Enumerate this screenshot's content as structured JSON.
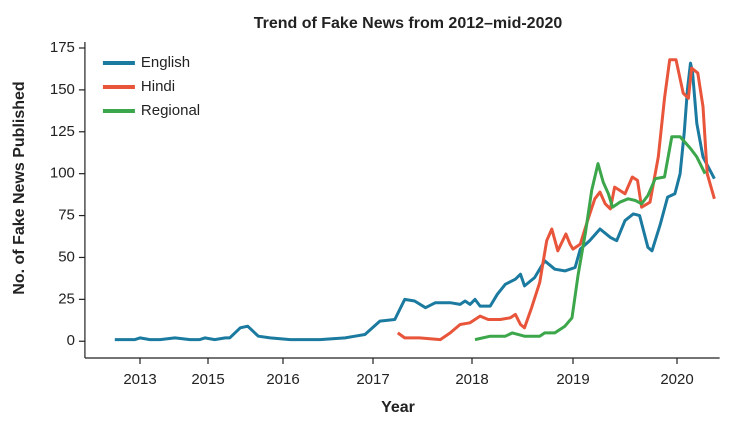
{
  "chart_data": {
    "type": "line",
    "title": "Trend of Fake News from 2012–mid-2020",
    "xlabel": "Year",
    "ylabel": "No. of Fake News Published",
    "xlim": [
      2011.38,
      2020.41
    ],
    "xticks": [
      2013,
      2015,
      2016,
      2017,
      2018,
      2019,
      2020
    ],
    "ylim": [
      -10,
      175
    ],
    "yticks": [
      0,
      25,
      50,
      75,
      100,
      125,
      150,
      175
    ],
    "grid": false,
    "legend": "upper left",
    "series": [
      {
        "name": "English",
        "color": "#1b7a9f",
        "x": [
          2012.26,
          2012.85,
          2013.0,
          2013.29,
          2013.59,
          2014.03,
          2014.47,
          2014.76,
          2014.91,
          2015.09,
          2015.23,
          2015.29,
          2015.43,
          2015.53,
          2015.67,
          2015.83,
          2016.08,
          2016.41,
          2016.69,
          2016.8,
          2016.91,
          2017.07,
          2017.22,
          2017.32,
          2017.42,
          2017.53,
          2017.63,
          2017.78,
          2017.88,
          2017.93,
          2017.98,
          2018.03,
          2018.08,
          2018.18,
          2018.25,
          2018.33,
          2018.43,
          2018.48,
          2018.52,
          2018.62,
          2018.72,
          2018.82,
          2018.92,
          2019.02,
          2019.07,
          2019.16,
          2019.26,
          2019.36,
          2019.42,
          2019.5,
          2019.58,
          2019.64,
          2019.72,
          2019.76,
          2019.84,
          2019.91,
          2019.98,
          2020.03,
          2020.07,
          2020.1,
          2020.13,
          2020.15,
          2020.19,
          2020.25,
          2020.36
        ],
        "values": [
          1,
          1,
          2,
          1,
          1,
          2,
          1,
          1,
          2,
          1,
          2,
          2,
          8,
          9,
          3,
          2,
          1,
          1,
          2,
          3,
          4,
          12,
          13,
          25,
          24,
          20,
          23,
          23,
          22,
          24,
          22,
          25,
          21,
          21,
          28,
          34,
          37,
          40,
          33,
          38,
          48,
          43,
          42,
          44,
          55,
          60,
          67,
          62,
          60,
          72,
          76,
          75,
          56,
          54,
          70,
          86,
          88,
          100,
          125,
          150,
          166,
          160,
          130,
          110,
          97
        ]
      },
      {
        "name": "Hindi",
        "color": "#e8553a",
        "x": [
          2017.25,
          2017.32,
          2017.47,
          2017.68,
          2017.78,
          2017.88,
          2017.98,
          2018.08,
          2018.16,
          2018.28,
          2018.38,
          2018.43,
          2018.48,
          2018.52,
          2018.59,
          2018.67,
          2018.74,
          2018.79,
          2018.85,
          2018.93,
          2018.97,
          2019.0,
          2019.07,
          2019.14,
          2019.21,
          2019.26,
          2019.31,
          2019.36,
          2019.4,
          2019.45,
          2019.5,
          2019.57,
          2019.62,
          2019.66,
          2019.74,
          2019.82,
          2019.88,
          2019.93,
          2019.99,
          2020.06,
          2020.11,
          2020.14,
          2020.2,
          2020.25,
          2020.29,
          2020.36
        ],
        "values": [
          5,
          2,
          2,
          1,
          5,
          10,
          11,
          15,
          13,
          13,
          14,
          16,
          10,
          8,
          20,
          35,
          60,
          67,
          54,
          64,
          58,
          55,
          58,
          72,
          85,
          89,
          82,
          79,
          92,
          90,
          88,
          98,
          96,
          80,
          83,
          110,
          145,
          168,
          168,
          148,
          145,
          163,
          160,
          140,
          100,
          85
        ]
      },
      {
        "name": "Regional",
        "color": "#3ca64b",
        "x": [
          2018.03,
          2018.18,
          2018.33,
          2018.4,
          2018.52,
          2018.67,
          2018.72,
          2018.82,
          2018.92,
          2018.99,
          2019.05,
          2019.12,
          2019.18,
          2019.24,
          2019.29,
          2019.34,
          2019.38,
          2019.45,
          2019.53,
          2019.6,
          2019.66,
          2019.72,
          2019.79,
          2019.88,
          2019.95,
          2020.03,
          2020.13,
          2020.19,
          2020.27
        ],
        "values": [
          1,
          3,
          3,
          5,
          3,
          3,
          5,
          5,
          9,
          14,
          40,
          65,
          90,
          106,
          95,
          88,
          80,
          83,
          85,
          84,
          82,
          87,
          97,
          98,
          122,
          122,
          115,
          110,
          100
        ]
      }
    ]
  }
}
